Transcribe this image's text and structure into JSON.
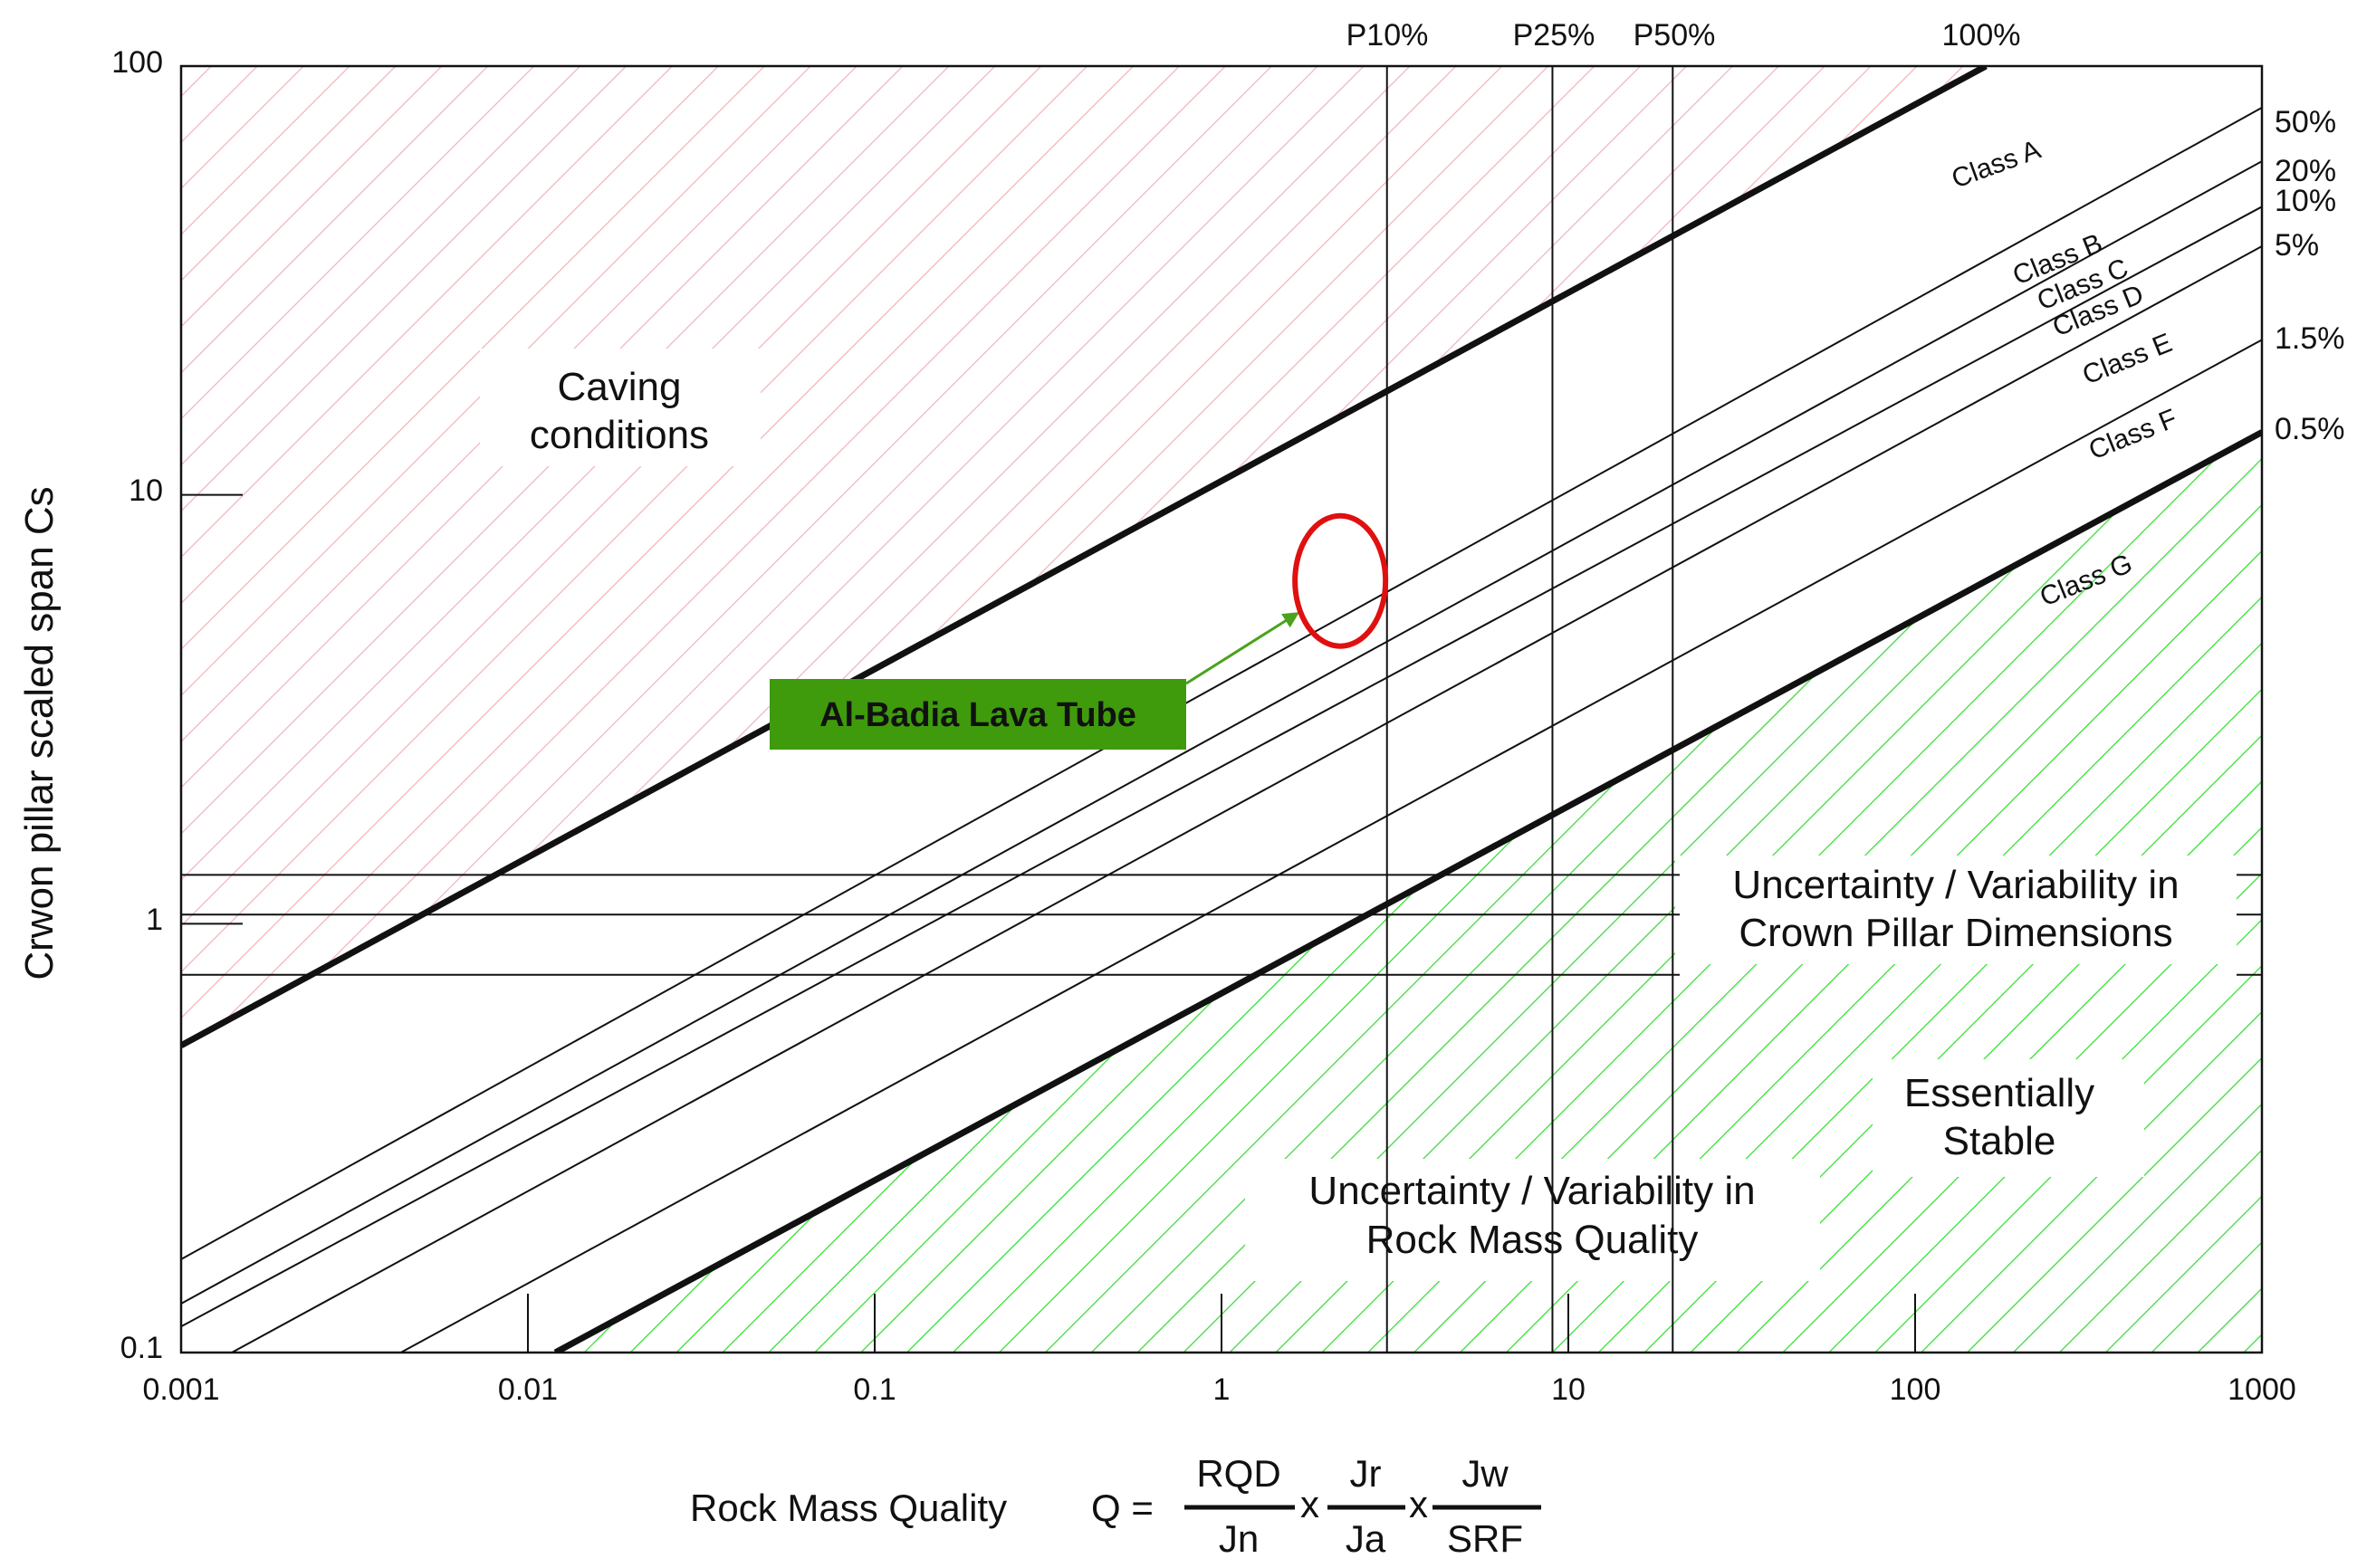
{
  "chart_data": {
    "type": "line",
    "xscale": "log",
    "yscale": "log",
    "xlim": [
      0.001,
      1000
    ],
    "ylim": [
      0.1,
      100
    ],
    "ylabel": "Crwon pillar scaled span Cs",
    "xlabel": {
      "prefix": "Rock Mass Quality",
      "q": "Q =",
      "terms": [
        {
          "num": "RQD",
          "den": "Jn"
        },
        {
          "num": "Jr",
          "den": "Ja"
        },
        {
          "num": "Jw",
          "den": "SRF"
        }
      ],
      "times": "x"
    },
    "x_ticks": [
      "0.001",
      "0.01",
      "0.1",
      "1",
      "10",
      "100",
      "1000"
    ],
    "y_ticks": [
      "0.1",
      "1",
      "10",
      "100"
    ],
    "x_tick_values": [
      0.001,
      0.01,
      0.1,
      1,
      10,
      100,
      1000
    ],
    "y_tick_values": [
      0.1,
      1,
      10,
      100
    ],
    "vertical_lines": [
      {
        "label": "P10%",
        "x": 3
      },
      {
        "label": "P25%",
        "x": 9
      },
      {
        "label": "P50%",
        "x": 20
      }
    ],
    "horizontal_lines": [
      1.3,
      1.05,
      0.76
    ],
    "series": [
      {
        "name": "100%",
        "x": [
          0.001,
          160
        ],
        "y": [
          0.52,
          100
        ],
        "bold": true
      },
      {
        "name": "50%",
        "x": [
          0.001,
          1000
        ],
        "y": [
          0.165,
          80
        ]
      },
      {
        "name": "20%",
        "x": [
          0.001,
          1000
        ],
        "y": [
          0.13,
          60
        ]
      },
      {
        "name": "10%",
        "x": [
          0.001,
          1000
        ],
        "y": [
          0.115,
          47
        ]
      },
      {
        "name": "5%",
        "x": [
          0.0014,
          1000
        ],
        "y": [
          0.1,
          38
        ]
      },
      {
        "name": "1.5%",
        "x": [
          0.0043,
          1000
        ],
        "y": [
          0.1,
          23
        ]
      },
      {
        "name": "0.5%",
        "x": [
          0.012,
          1000
        ],
        "y": [
          0.1,
          14
        ],
        "bold": true
      }
    ],
    "class_labels": [
      "Class A",
      "Class B",
      "Class C",
      "Class D",
      "Class E",
      "Class F",
      "Class G"
    ],
    "annotations": {
      "caving": [
        "Caving",
        "conditions"
      ],
      "stable": [
        "Essentially",
        "Stable"
      ],
      "dims": [
        "Uncertainty / Variability in",
        "Crown Pillar Dimensions"
      ],
      "rmq": [
        "Uncertainty / Variability in",
        "Rock Mass Quality"
      ],
      "callout": "Al-Badia Lava Tube"
    },
    "marker": {
      "shape": "ellipse",
      "x": 2.2,
      "y": 6.3,
      "color": "#e01010"
    },
    "colors": {
      "caving_hatch": "#f0b4bc",
      "stable_hatch": "#33dd33",
      "callout_bg": "#3f9b0b",
      "callout_arrow": "#4aa31a"
    },
    "grid": false
  }
}
